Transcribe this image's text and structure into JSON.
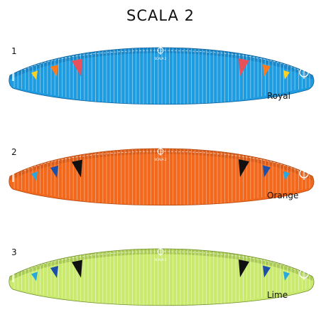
{
  "title": "SCALA 2",
  "brand_text": "SCALA 2",
  "logo_icon": "phi-logo-icon",
  "variants": [
    {
      "number": "1",
      "name": "Royal",
      "fill": "#1f9be0",
      "stripe": "#8fd0f2",
      "tab_outer": "#ffd21f",
      "tab_mid": "#ff7a1a",
      "tab_inner": "#e8505b",
      "edge": "#0d5f9a"
    },
    {
      "number": "2",
      "name": "Orange",
      "fill": "#f2691e",
      "stripe": "#f9a777",
      "tab_outer": "#29a8e0",
      "tab_mid": "#1b4fa8",
      "tab_inner": "#111111",
      "edge": "#b24710"
    },
    {
      "number": "3",
      "name": "Lime",
      "fill": "#c9ea6e",
      "stripe": "#e7f6b8",
      "tab_outer": "#29a8e0",
      "tab_mid": "#1b4fa8",
      "tab_inner": "#111111",
      "edge": "#6f8f2a"
    }
  ]
}
